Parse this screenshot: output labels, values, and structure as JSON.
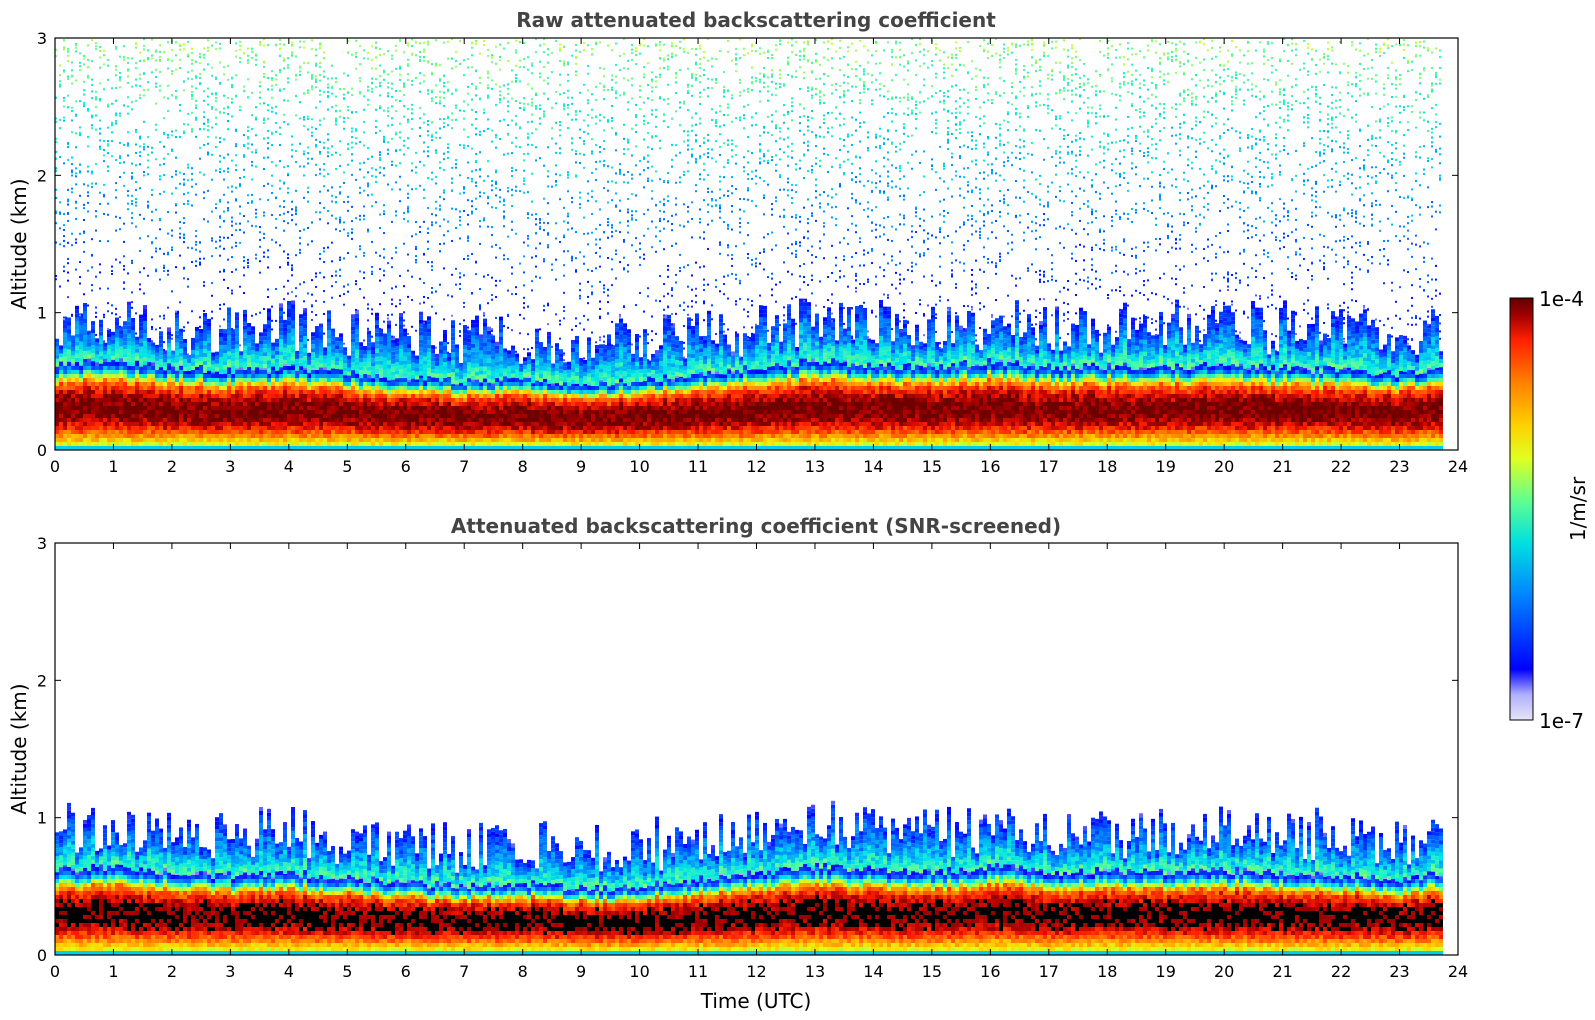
{
  "chart_data": [
    {
      "type": "heatmap",
      "title": "Raw attenuated backscattering coefficient",
      "xlabel": "",
      "ylabel": "Altitude (km)",
      "xlim": [
        0,
        24
      ],
      "ylim": [
        0,
        3
      ],
      "xticks": [
        "0",
        "1",
        "2",
        "3",
        "4",
        "5",
        "6",
        "7",
        "8",
        "9",
        "10",
        "11",
        "12",
        "13",
        "14",
        "15",
        "16",
        "17",
        "18",
        "19",
        "20",
        "21",
        "22",
        "23",
        "24"
      ],
      "yticks": [
        "0",
        "1",
        "2",
        "3"
      ],
      "data_end_hour": 23.8,
      "boundary_layer_top_km": [
        [
          0,
          0.62
        ],
        [
          1,
          0.65
        ],
        [
          2,
          0.6
        ],
        [
          3,
          0.58
        ],
        [
          4,
          0.6
        ],
        [
          5,
          0.56
        ],
        [
          6,
          0.52
        ],
        [
          7,
          0.5
        ],
        [
          8,
          0.52
        ],
        [
          9,
          0.48
        ],
        [
          10,
          0.5
        ],
        [
          11,
          0.55
        ],
        [
          12,
          0.6
        ],
        [
          13,
          0.65
        ],
        [
          14,
          0.62
        ],
        [
          15,
          0.6
        ],
        [
          16,
          0.65
        ],
        [
          17,
          0.6
        ],
        [
          18,
          0.62
        ],
        [
          19,
          0.6
        ],
        [
          20,
          0.62
        ],
        [
          21,
          0.6
        ],
        [
          22,
          0.58
        ],
        [
          23,
          0.55
        ],
        [
          23.8,
          0.6
        ]
      ],
      "grid": false
    },
    {
      "type": "heatmap",
      "title": "Attenuated backscattering coefficient (SNR-screened)",
      "xlabel": "Time (UTC)",
      "ylabel": "Altitude (km)",
      "xlim": [
        0,
        24
      ],
      "ylim": [
        0,
        3
      ],
      "xticks": [
        "0",
        "1",
        "2",
        "3",
        "4",
        "5",
        "6",
        "7",
        "8",
        "9",
        "10",
        "11",
        "12",
        "13",
        "14",
        "15",
        "16",
        "17",
        "18",
        "19",
        "20",
        "21",
        "22",
        "23",
        "24"
      ],
      "yticks": [
        "0",
        "1",
        "2",
        "3"
      ],
      "data_end_hour": 23.8,
      "grid": false
    }
  ],
  "colorbar": {
    "label": "1/m/sr",
    "max_label": "1e-4",
    "min_label": "1e-7",
    "colormap": "jet",
    "colors": [
      "#e6e6f5",
      "#b0b0ff",
      "#0000ff",
      "#0088ff",
      "#00e0e0",
      "#60ff90",
      "#e0ff20",
      "#ffd000",
      "#ff8000",
      "#ff2000",
      "#a00000",
      "#600000"
    ]
  }
}
